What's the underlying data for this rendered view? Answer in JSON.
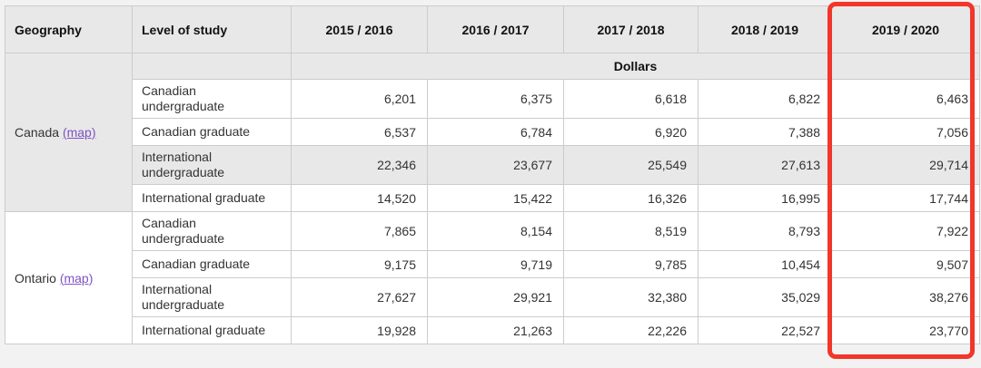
{
  "table": {
    "columns": [
      "Geography",
      "Level of study",
      "2015 / 2016",
      "2016 / 2017",
      "2017 / 2018",
      "2018 / 2019",
      "2019 / 2020"
    ],
    "unit_label": "Dollars",
    "groups": [
      {
        "geography": "Canada",
        "map_label": "(map)",
        "rows": [
          {
            "level": "Canadian undergraduate",
            "values": [
              "6,201",
              "6,375",
              "6,618",
              "6,822",
              "6,463"
            ],
            "highlighted": false
          },
          {
            "level": "Canadian graduate",
            "values": [
              "6,537",
              "6,784",
              "6,920",
              "7,388",
              "7,056"
            ],
            "highlighted": false
          },
          {
            "level": "International undergraduate",
            "values": [
              "22,346",
              "23,677",
              "25,549",
              "27,613",
              "29,714"
            ],
            "highlighted": true
          },
          {
            "level": "International graduate",
            "values": [
              "14,520",
              "15,422",
              "16,326",
              "16,995",
              "17,744"
            ],
            "highlighted": false
          }
        ]
      },
      {
        "geography": "Ontario",
        "map_label": "(map)",
        "rows": [
          {
            "level": "Canadian undergraduate",
            "values": [
              "7,865",
              "8,154",
              "8,519",
              "8,793",
              "7,922"
            ],
            "highlighted": false
          },
          {
            "level": "Canadian graduate",
            "values": [
              "9,175",
              "9,719",
              "9,785",
              "10,454",
              "9,507"
            ],
            "highlighted": false
          },
          {
            "level": "International undergraduate",
            "values": [
              "27,627",
              "29,921",
              "32,380",
              "35,029",
              "38,276"
            ],
            "highlighted": false
          },
          {
            "level": "International graduate",
            "values": [
              "19,928",
              "21,263",
              "22,226",
              "22,527",
              "23,770"
            ],
            "highlighted": false
          }
        ]
      }
    ]
  },
  "annotation": {
    "highlighted_column": "2019 / 2020",
    "color": "#f2362a"
  },
  "colors": {
    "header_background": "#e8e8e8",
    "row_highlight": "#e8e8e8",
    "border": "#cccccc",
    "link_purple": "#7d52c2",
    "page_background": "#f2f2f2"
  }
}
